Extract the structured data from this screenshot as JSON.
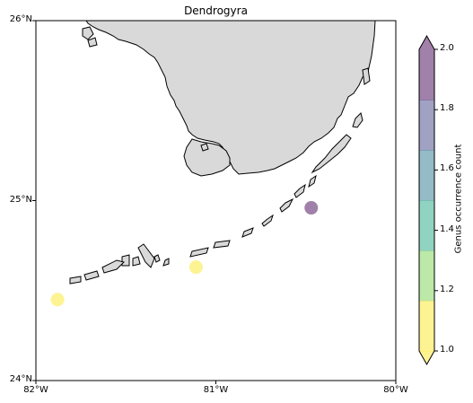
{
  "title": "Dendrogyra",
  "map": {
    "lon_range": [
      -82,
      -80
    ],
    "lat_range": [
      24,
      26
    ],
    "x_ticks": [
      {
        "value": -82,
        "label": "82°W"
      },
      {
        "value": -81,
        "label": "81°W"
      },
      {
        "value": -80,
        "label": "80°W"
      }
    ],
    "y_ticks": [
      {
        "value": 26,
        "label": "26°N"
      },
      {
        "value": 25,
        "label": "25°N"
      },
      {
        "value": 24,
        "label": "24°N"
      }
    ],
    "land_color": "#d9d9d9",
    "coast_color": "#000000"
  },
  "chart_data": {
    "type": "scatter",
    "title": "Dendrogyra",
    "points": [
      {
        "lon": -81.88,
        "lat": 24.45,
        "count": 1
      },
      {
        "lon": -81.11,
        "lat": 24.63,
        "count": 1
      },
      {
        "lon": -80.47,
        "lat": 24.96,
        "count": 2
      }
    ],
    "colorbar": {
      "label": "Genus occurrence count",
      "range": [
        1.0,
        2.0
      ],
      "ticks": [
        "1.0",
        "1.2",
        "1.4",
        "1.6",
        "1.8",
        "2.0"
      ],
      "colors": [
        "#fde725",
        "#7ad151",
        "#22a884",
        "#2a788e",
        "#414487",
        "#440154"
      ],
      "alpha": 0.5,
      "extend": "both"
    }
  }
}
